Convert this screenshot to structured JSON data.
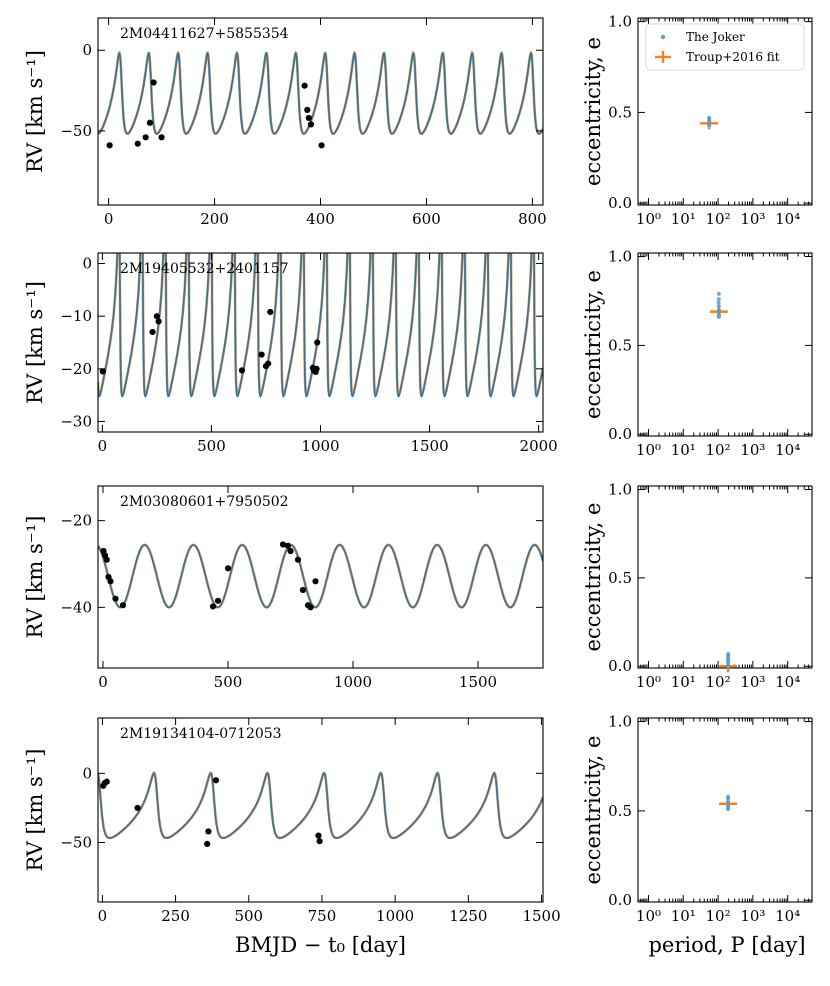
{
  "figure": {
    "rv_ylabel": "RV [km s⁻¹]",
    "ecc_ylabel": "eccentricity, e",
    "xlabel_time": "BMJD − t₀ [day]",
    "xlabel_period": "period, P [day]",
    "legend": [
      {
        "label": "The Joker",
        "color": "#5a9ec9"
      },
      {
        "label": "Troup+2016 fit",
        "color": "#ff7f0e"
      }
    ],
    "colors": {
      "orbit_samples": "#1f77b4",
      "troup_fit": "#ff7f0e",
      "data": "#000000"
    }
  },
  "chart_data": [
    {
      "type": "line",
      "star": "2M04411627+5855354",
      "xlabel": "",
      "ylabel": "RV [km s⁻¹]",
      "xlim": [
        -20,
        820
      ],
      "ylim": [
        -96,
        20
      ],
      "xticks": [
        0,
        200,
        400,
        600,
        800
      ],
      "yticks": [
        0,
        -50
      ],
      "model": {
        "period": 55.5,
        "ecc": 0.44,
        "K": 25,
        "gamma": -33.5,
        "phase": 0.58
      },
      "points": [
        [
          2,
          -59
        ],
        [
          55,
          -58
        ],
        [
          70,
          -54
        ],
        [
          78,
          -45
        ],
        [
          85,
          -20
        ],
        [
          100,
          -54
        ],
        [
          370,
          -22
        ],
        [
          375,
          -37
        ],
        [
          378,
          -42
        ],
        [
          382,
          -46
        ],
        [
          402,
          -59
        ]
      ]
    },
    {
      "type": "line",
      "star": "2M19405532+2401157",
      "xlabel": "",
      "ylabel": "RV [km s⁻¹]",
      "xlim": [
        -20,
        2020
      ],
      "ylim": [
        -32,
        2
      ],
      "xticks": [
        0,
        500,
        1000,
        1500,
        2000
      ],
      "yticks": [
        0,
        -10,
        -20,
        -30
      ],
      "model": {
        "period": 105.5,
        "ecc": 0.69,
        "K": 20,
        "gamma": -13.5,
        "phase": 0.25
      },
      "points": [
        [
          2,
          -20.5
        ],
        [
          230,
          -13
        ],
        [
          250,
          -10
        ],
        [
          258,
          -11
        ],
        [
          640,
          -20.3
        ],
        [
          730,
          -17.3
        ],
        [
          750,
          -19.5
        ],
        [
          760,
          -19
        ],
        [
          770,
          -9.2
        ],
        [
          965,
          -19.8
        ],
        [
          970,
          -20.3
        ],
        [
          978,
          -20.6
        ],
        [
          982,
          -20
        ],
        [
          985,
          -15
        ]
      ]
    },
    {
      "type": "line",
      "star": "2M03080601+7950502",
      "xlabel": "",
      "ylabel": "RV [km s⁻¹]",
      "xlim": [
        -20,
        1760
      ],
      "ylim": [
        -54,
        -12
      ],
      "xticks": [
        0,
        500,
        1000,
        1500
      ],
      "yticks": [
        -20,
        -40
      ],
      "model": {
        "period": 195,
        "ecc": 0.0,
        "K": 7.2,
        "gamma": -32.8,
        "phase": 0.0
      },
      "points": [
        [
          2,
          -27
        ],
        [
          8,
          -28
        ],
        [
          15,
          -29
        ],
        [
          22,
          -33
        ],
        [
          30,
          -34
        ],
        [
          50,
          -38
        ],
        [
          80,
          -39.5
        ],
        [
          440,
          -39.8
        ],
        [
          460,
          -38.5
        ],
        [
          500,
          -31
        ],
        [
          720,
          -25.5
        ],
        [
          740,
          -25.8
        ],
        [
          750,
          -27
        ],
        [
          780,
          -29
        ],
        [
          800,
          -36
        ],
        [
          820,
          -39.5
        ],
        [
          830,
          -40
        ],
        [
          850,
          -34
        ]
      ]
    },
    {
      "type": "line",
      "star": "2M19134104-0712053",
      "xlabel": "BMJD − t₀ [day]",
      "ylabel": "RV [km s⁻¹]",
      "xlim": [
        -15,
        1505
      ],
      "ylim": [
        -93,
        40
      ],
      "xticks": [
        0,
        250,
        500,
        750,
        1000,
        1250,
        1500
      ],
      "yticks": [
        0,
        -50
      ],
      "model": {
        "period": 193.7,
        "ecc": 0.54,
        "K": 23.5,
        "gamma": -31,
        "phase": 0.05
      },
      "points": [
        [
          3,
          -9
        ],
        [
          8,
          -7
        ],
        [
          15,
          -6
        ],
        [
          120,
          -25
        ],
        [
          358,
          -51
        ],
        [
          362,
          -42
        ],
        [
          388,
          -5
        ],
        [
          738,
          -45
        ],
        [
          742,
          -49
        ]
      ]
    },
    {
      "type": "scatter",
      "xlabel": "",
      "ylabel": "eccentricity, e",
      "xscale": "log",
      "xlim": [
        0.5,
        50000
      ],
      "ylim": [
        -0.01,
        1.02
      ],
      "xticks": [
        1,
        10,
        100,
        1000,
        10000
      ],
      "xticklabels": [
        "10⁰",
        "10¹",
        "10²",
        "10³",
        "10⁴"
      ],
      "yticks": [
        0,
        0.5,
        1
      ],
      "yticklabels": [
        "0.0",
        "0.5",
        "1.0"
      ],
      "joker": [
        [
          55.5,
          0.43
        ],
        [
          55.5,
          0.44
        ],
        [
          55.6,
          0.45
        ],
        [
          55.4,
          0.46
        ],
        [
          55.5,
          0.47
        ],
        [
          55.7,
          0.44
        ],
        [
          55.3,
          0.43
        ]
      ],
      "troup": {
        "P": 55.5,
        "e": 0.44
      }
    },
    {
      "type": "scatter",
      "xlabel": "",
      "ylabel": "eccentricity, e",
      "xscale": "log",
      "xlim": [
        0.5,
        50000
      ],
      "ylim": [
        -0.01,
        1.02
      ],
      "xticks": [
        1,
        10,
        100,
        1000,
        10000
      ],
      "xticklabels": [
        "10⁰",
        "10¹",
        "10²",
        "10³",
        "10⁴"
      ],
      "yticks": [
        0,
        0.5,
        1
      ],
      "yticklabels": [
        "0.0",
        "0.5",
        "1.0"
      ],
      "joker": [
        [
          105,
          0.66
        ],
        [
          105,
          0.68
        ],
        [
          106,
          0.7
        ],
        [
          105,
          0.72
        ],
        [
          104,
          0.74
        ],
        [
          105,
          0.76
        ],
        [
          105,
          0.79
        ],
        [
          106,
          0.67
        ]
      ],
      "troup": {
        "P": 105.5,
        "e": 0.69
      }
    },
    {
      "type": "scatter",
      "xlabel": "",
      "ylabel": "eccentricity, e",
      "xscale": "log",
      "xlim": [
        0.5,
        50000
      ],
      "ylim": [
        -0.01,
        1.02
      ],
      "xticks": [
        1,
        10,
        100,
        1000,
        10000
      ],
      "xticklabels": [
        "10⁰",
        "10¹",
        "10²",
        "10³",
        "10⁴"
      ],
      "yticks": [
        0,
        0.5,
        1
      ],
      "yticklabels": [
        "0.0",
        "0.5",
        "1.0"
      ],
      "joker": [
        [
          195,
          0.0
        ],
        [
          195,
          0.01
        ],
        [
          196,
          0.02
        ],
        [
          195,
          0.03
        ],
        [
          194,
          0.04
        ],
        [
          195,
          0.05
        ],
        [
          196,
          0.06
        ],
        [
          195,
          0.07
        ]
      ],
      "troup": {
        "P": 195,
        "e": 0.0
      }
    },
    {
      "type": "scatter",
      "xlabel": "period, P [day]",
      "ylabel": "eccentricity, e",
      "xscale": "log",
      "xlim": [
        0.5,
        50000
      ],
      "ylim": [
        -0.01,
        1.02
      ],
      "xticks": [
        1,
        10,
        100,
        1000,
        10000
      ],
      "xticklabels": [
        "10⁰",
        "10¹",
        "10²",
        "10³",
        "10⁴"
      ],
      "yticks": [
        0,
        0.5,
        1
      ],
      "yticklabels": [
        "0.0",
        "0.5",
        "1.0"
      ],
      "joker": [
        [
          193,
          0.51
        ],
        [
          194,
          0.53
        ],
        [
          193,
          0.55
        ],
        [
          194,
          0.57
        ],
        [
          193,
          0.58
        ],
        [
          194,
          0.52
        ]
      ],
      "troup": {
        "P": 193.7,
        "e": 0.54
      }
    }
  ]
}
